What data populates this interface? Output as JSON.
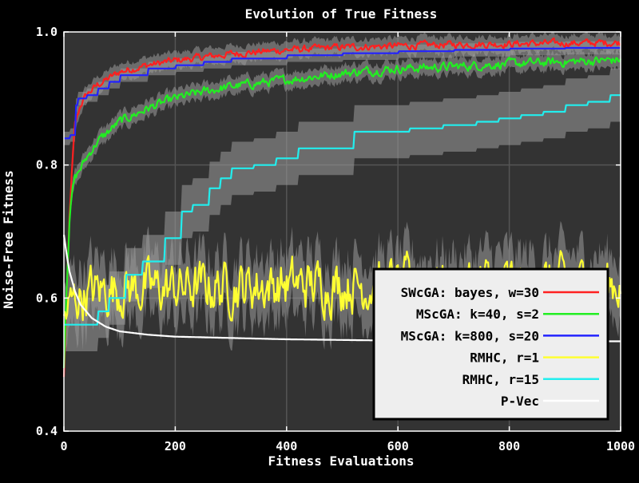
{
  "chart_data": {
    "type": "line",
    "title": "Evolution of True Fitness",
    "xlabel": "Fitness Evaluations",
    "ylabel": "Noise-Free Fitness",
    "xlim": [
      0,
      1000
    ],
    "ylim": [
      0.4,
      1.0
    ],
    "x_ticks": [
      "0",
      "200",
      "400",
      "600",
      "800",
      "1000"
    ],
    "y_ticks": [
      "0.4",
      "0.6",
      "0.8",
      "1.0"
    ],
    "grid": true,
    "legend_position": "bottom-right",
    "colors": {
      "background": "#000000",
      "plot_background": "#333333",
      "band": "#888888",
      "grid": "#555555"
    },
    "series": [
      {
        "name": "SWcGA: bayes, w=30",
        "color": "#ff2020",
        "noise": 0.004,
        "band": 0.012,
        "x": [
          0,
          5,
          10,
          15,
          20,
          30,
          40,
          60,
          80,
          100,
          150,
          200,
          250,
          300,
          400,
          500,
          600,
          700,
          800,
          900,
          1000
        ],
        "y": [
          0.48,
          0.6,
          0.72,
          0.8,
          0.86,
          0.89,
          0.905,
          0.92,
          0.93,
          0.94,
          0.95,
          0.957,
          0.962,
          0.967,
          0.973,
          0.977,
          0.979,
          0.981,
          0.982,
          0.983,
          0.984
        ]
      },
      {
        "name": "MScGA: k=40, s=2",
        "color": "#22ee22",
        "noise": 0.005,
        "band": 0.012,
        "x": [
          0,
          5,
          10,
          15,
          20,
          30,
          40,
          60,
          80,
          100,
          150,
          200,
          250,
          300,
          400,
          500,
          600,
          700,
          800,
          900,
          1000
        ],
        "y": [
          0.5,
          0.62,
          0.72,
          0.76,
          0.78,
          0.795,
          0.81,
          0.835,
          0.85,
          0.865,
          0.885,
          0.9,
          0.91,
          0.918,
          0.928,
          0.938,
          0.945,
          0.948,
          0.952,
          0.955,
          0.958
        ]
      },
      {
        "name": "MScGA: k=800, s=20",
        "color": "#2222ff",
        "noise": 0.0,
        "band": 0.01,
        "step": true,
        "x": [
          0,
          10,
          20,
          25,
          40,
          60,
          80,
          100,
          150,
          200,
          250,
          300,
          400,
          500,
          600,
          700,
          800,
          900,
          1000
        ],
        "y": [
          0.84,
          0.845,
          0.89,
          0.9,
          0.905,
          0.915,
          0.925,
          0.935,
          0.945,
          0.95,
          0.955,
          0.96,
          0.965,
          0.968,
          0.971,
          0.973,
          0.975,
          0.976,
          0.977
        ]
      },
      {
        "name": "RMHC, r=1",
        "color": "#ffff33",
        "noise": 0.028,
        "band": 0.045,
        "x": [
          0,
          20,
          50,
          100,
          200,
          400,
          600,
          800,
          1000
        ],
        "y": [
          0.57,
          0.6,
          0.61,
          0.615,
          0.615,
          0.62,
          0.62,
          0.62,
          0.622
        ]
      },
      {
        "name": "RMHC, r=15",
        "color": "#22eeee",
        "noise": 0.0,
        "band": 0.04,
        "step": true,
        "x": [
          0,
          20,
          60,
          80,
          110,
          140,
          180,
          210,
          230,
          260,
          280,
          300,
          340,
          380,
          420,
          520,
          620,
          680,
          740,
          780,
          820,
          860,
          900,
          940,
          980,
          1000
        ],
        "y": [
          0.56,
          0.56,
          0.58,
          0.6,
          0.635,
          0.655,
          0.69,
          0.73,
          0.74,
          0.765,
          0.78,
          0.795,
          0.8,
          0.81,
          0.825,
          0.85,
          0.855,
          0.86,
          0.865,
          0.87,
          0.875,
          0.88,
          0.89,
          0.895,
          0.905,
          0.907
        ]
      },
      {
        "name": "P-Vec",
        "color": "#ffffff",
        "noise": 0.0,
        "band": 0.0,
        "x": [
          0,
          5,
          10,
          20,
          30,
          50,
          75,
          100,
          150,
          200,
          300,
          400,
          500,
          600,
          800,
          1000
        ],
        "y": [
          0.695,
          0.665,
          0.64,
          0.61,
          0.59,
          0.57,
          0.557,
          0.55,
          0.545,
          0.542,
          0.54,
          0.538,
          0.537,
          0.536,
          0.535,
          0.535
        ]
      }
    ]
  }
}
